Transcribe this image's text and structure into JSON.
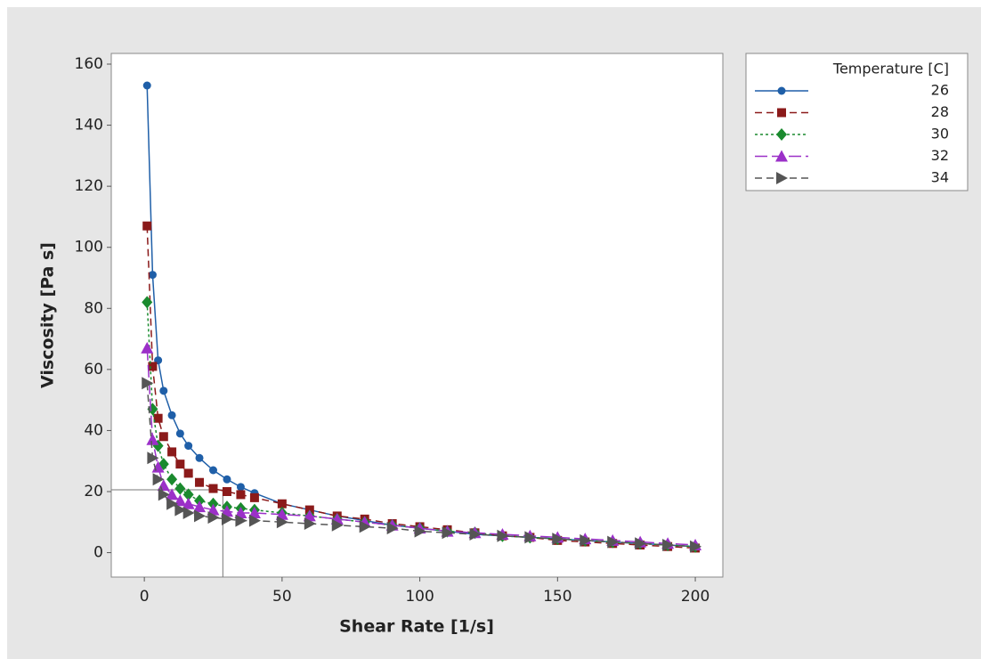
{
  "chart_data": {
    "type": "line",
    "x_label": "Shear Rate [1/s]",
    "y_label": "Viscosity [Pa s]",
    "legend_title": "Temperature [C]",
    "legend_position": "right",
    "xlim": [
      -12,
      210
    ],
    "ylim": [
      -8,
      163.5
    ],
    "xticks": [
      0,
      50,
      100,
      150,
      200
    ],
    "yticks": [
      0,
      20,
      40,
      60,
      80,
      100,
      120,
      140,
      160
    ],
    "reference_lines": {
      "x": 28.5,
      "y": 20.6
    },
    "x": [
      1,
      3,
      5,
      7,
      10,
      13,
      16,
      20,
      25,
      30,
      35,
      40,
      50,
      60,
      70,
      80,
      90,
      100,
      110,
      120,
      130,
      140,
      150,
      160,
      170,
      180,
      190,
      200
    ],
    "series": [
      {
        "name": "26",
        "color": "#1f5fa8",
        "marker": "circle",
        "dash": "solid",
        "values": [
          153,
          91,
          63,
          53,
          45,
          39,
          35,
          31,
          27,
          24,
          21.5,
          19.5,
          16,
          14,
          12,
          10.5,
          9,
          8,
          7,
          6,
          5.5,
          5,
          4.5,
          4,
          3.5,
          3,
          2.5,
          2
        ]
      },
      {
        "name": "28",
        "color": "#8b1a1a",
        "marker": "square",
        "dash": "dashed",
        "values": [
          107,
          61,
          44,
          38,
          33,
          29,
          26,
          23,
          21,
          20,
          19,
          18,
          16,
          14,
          12,
          11,
          9.5,
          8.5,
          7.5,
          6.5,
          5.5,
          5,
          4,
          3.5,
          3,
          2.5,
          2,
          1.5
        ]
      },
      {
        "name": "30",
        "color": "#1a8a2e",
        "marker": "diamond",
        "dash": "dotted",
        "values": [
          82,
          47,
          35,
          29,
          24,
          21,
          19,
          17,
          16,
          15,
          14.5,
          14,
          13,
          12,
          11,
          10,
          9,
          8,
          7,
          6.5,
          5.5,
          5,
          4.5,
          4,
          3.5,
          3,
          2.5,
          2
        ]
      },
      {
        "name": "32",
        "color": "#9b30c8",
        "marker": "triangle-up",
        "dash": "longdash",
        "values": [
          67,
          37,
          28,
          22,
          19,
          17,
          16,
          15,
          14,
          13.5,
          13,
          13,
          12.5,
          12,
          11,
          10,
          9,
          8,
          7,
          6.5,
          6,
          5.5,
          5,
          4.5,
          4,
          3.5,
          3,
          2.5
        ]
      },
      {
        "name": "34",
        "color": "#555555",
        "marker": "triangle-right",
        "dash": "dashed",
        "values": [
          55.5,
          31,
          24,
          19,
          16,
          14,
          13,
          12,
          11.5,
          11,
          10.5,
          10.5,
          10,
          9.5,
          9,
          8.5,
          8,
          7,
          6.5,
          6,
          5.5,
          5,
          4.5,
          4,
          3.5,
          3,
          2.5,
          2
        ]
      }
    ]
  }
}
